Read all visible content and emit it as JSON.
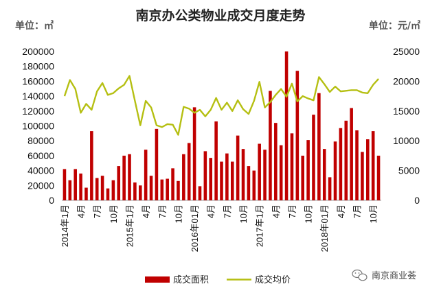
{
  "colors": {
    "bar": "#c00000",
    "line": "#b5bf12",
    "text": "#222222",
    "axis": "#999999"
  },
  "watermark": {
    "icon": "wechat-icon",
    "text": "南京商业荟"
  },
  "chart_data": {
    "type": "bar",
    "title": "南京办公类物业成交月度走势",
    "left_unit": "单位：㎡",
    "right_unit": "单位：元/㎡",
    "left_axis": {
      "min": 0,
      "max": 200000,
      "step": 20000,
      "ticks": [
        "0",
        "20000",
        "40000",
        "60000",
        "80000",
        "100000",
        "120000",
        "140000",
        "160000",
        "180000",
        "200000"
      ]
    },
    "right_axis": {
      "min": 0,
      "max": 25000,
      "step": 5000,
      "ticks": [
        "0",
        "5000",
        "10000",
        "15000",
        "20000",
        "25000"
      ]
    },
    "x_tick_labels": [
      "2014年1月",
      "",
      "",
      "4月",
      "",
      "",
      "7月",
      "",
      "",
      "10月",
      "",
      "",
      "2015年1月",
      "",
      "",
      "4月",
      "",
      "",
      "7月",
      "",
      "",
      "10月",
      "",
      "",
      "2016年01月",
      "",
      "",
      "4月",
      "",
      "",
      "7月",
      "",
      "",
      "10月",
      "",
      "",
      "2017年1月",
      "",
      "",
      "4月",
      "",
      "",
      "7月",
      "",
      "",
      "10月",
      "",
      "",
      "2018年01月",
      "",
      "",
      "4月",
      "",
      "",
      "7月",
      "",
      "",
      "10月",
      ""
    ],
    "legend": [
      "成交面积",
      "成交均价"
    ],
    "series": [
      {
        "name": "成交面积",
        "type": "bar",
        "axis": "left",
        "values": [
          42000,
          27000,
          42000,
          36000,
          17000,
          93000,
          30000,
          33000,
          16000,
          27000,
          46000,
          60000,
          62000,
          24000,
          20000,
          68000,
          33000,
          96000,
          28000,
          29000,
          43000,
          26000,
          62000,
          77000,
          125000,
          19000,
          66000,
          57000,
          106000,
          52000,
          63000,
          52000,
          87000,
          69000,
          46000,
          40000,
          76000,
          68000,
          147000,
          104000,
          74000,
          200000,
          90000,
          174000,
          60000,
          81000,
          115000,
          144000,
          69000,
          31000,
          79000,
          97000,
          107000,
          124000,
          94000,
          65000,
          82000,
          93000,
          60000
        ]
      },
      {
        "name": "成交均价",
        "type": "line",
        "axis": "right",
        "values": [
          17500,
          20200,
          18700,
          14700,
          16200,
          15200,
          18300,
          19700,
          17700,
          18000,
          18800,
          19400,
          20900,
          16700,
          12600,
          16700,
          15600,
          12600,
          12300,
          12800,
          12700,
          11000,
          15700,
          15400,
          14700,
          15200,
          14100,
          15200,
          17200,
          15200,
          16400,
          15000,
          16800,
          15300,
          14500,
          16700,
          19900,
          15600,
          16500,
          17700,
          18700,
          17400,
          19600,
          16600,
          17500,
          17100,
          16800,
          20700,
          19500,
          18200,
          19100,
          18300,
          18400,
          18500,
          18500,
          18100,
          18000,
          19400,
          20400
        ]
      }
    ]
  }
}
